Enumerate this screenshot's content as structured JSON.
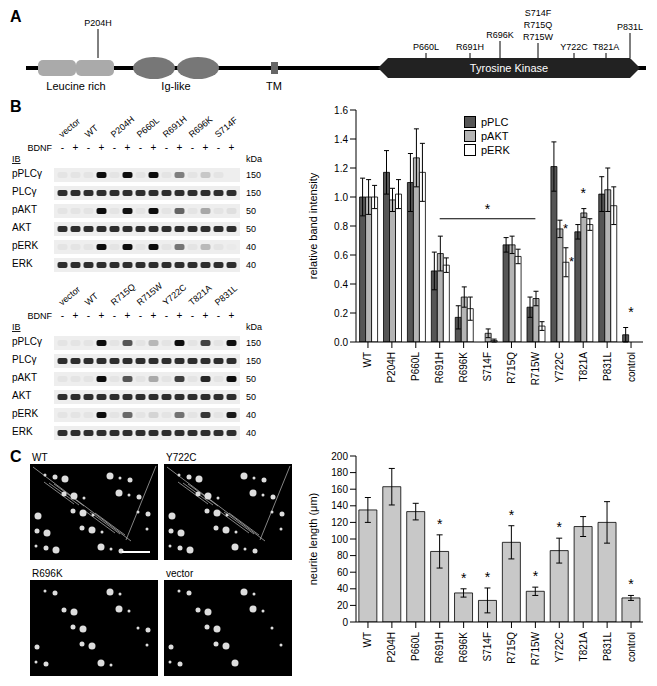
{
  "panel_labels": [
    "A",
    "B",
    "C"
  ],
  "domain_diagram": {
    "domains": [
      "Leucine rich",
      "Ig-like",
      "TM",
      "Tyrosine Kinase"
    ],
    "mutations": [
      "P204H",
      "P660L",
      "R691H",
      "R696K",
      "S714F",
      "R715Q",
      "R715W",
      "Y722C",
      "T821A",
      "P831L"
    ]
  },
  "blots": {
    "ib_label": "IB",
    "kda_label": "kDa",
    "treatment_label": "BDNF",
    "treatment": [
      "-",
      "+"
    ],
    "rows": [
      {
        "label": "pPLCγ",
        "kDa": 150,
        "series": "pPLC"
      },
      {
        "label": "PLCγ",
        "kDa": 150
      },
      {
        "label": "pAKT",
        "kDa": 50,
        "series": "pAKT"
      },
      {
        "label": "AKT",
        "kDa": 50
      },
      {
        "label": "pERK",
        "kDa": 40,
        "series": "pERK"
      },
      {
        "label": "ERK",
        "kDa": 40
      }
    ],
    "gels": [
      {
        "lanes": [
          "vector",
          "WT",
          "P204H",
          "P660L",
          "R691H",
          "R696K",
          "S714F"
        ]
      },
      {
        "lanes": [
          "vector",
          "WT",
          "R715Q",
          "R715W",
          "Y722C",
          "T821A",
          "P831L"
        ]
      }
    ]
  },
  "micrographs": {
    "panels": [
      "WT",
      "Y722C",
      "R696K",
      "vector"
    ]
  },
  "chart_data": [
    {
      "type": "bar",
      "y_label": "relative band intensity",
      "categories": [
        "WT",
        "P204H",
        "P660L",
        "R691H",
        "R696K",
        "S714F",
        "R715Q",
        "R715W",
        "Y722C",
        "T821A",
        "P831L",
        "control"
      ],
      "series": [
        {
          "name": "pPLC",
          "color": "#555555",
          "values": [
            1.0,
            1.17,
            1.1,
            0.49,
            0.17,
            0.0,
            0.67,
            0.24,
            1.21,
            0.76,
            1.02,
            0.05
          ],
          "errors": [
            0.13,
            0.15,
            0.2,
            0.13,
            0.08,
            0.0,
            0.05,
            0.07,
            0.17,
            0.05,
            0.12,
            0.05
          ]
        },
        {
          "name": "pAKT",
          "color": "#b4b4b4",
          "values": [
            1.0,
            0.98,
            1.27,
            0.61,
            0.31,
            0.06,
            0.67,
            0.3,
            0.78,
            0.89,
            1.05,
            0.0
          ],
          "errors": [
            0.12,
            0.08,
            0.2,
            0.12,
            0.07,
            0.03,
            0.06,
            0.05,
            0.06,
            0.03,
            0.15,
            0.0
          ]
        },
        {
          "name": "pERK",
          "color": "#ffffff",
          "values": [
            1.0,
            1.02,
            1.17,
            0.53,
            0.23,
            0.01,
            0.59,
            0.11,
            0.55,
            0.81,
            0.94,
            0.0
          ],
          "errors": [
            0.08,
            0.1,
            0.2,
            0.05,
            0.08,
            0.01,
            0.05,
            0.03,
            0.1,
            0.04,
            0.13,
            0.0
          ]
        }
      ],
      "ylim": [
        0,
        1.6
      ],
      "yticks": [
        {
          "value": 0,
          "label": "0.0"
        },
        0.2,
        0.4,
        0.6,
        0.8,
        {
          "value": 1,
          "label": "1.0"
        },
        1.2,
        1.4,
        1.6
      ],
      "legend": "top",
      "annotations": [
        {
          "text": "*",
          "from": "R691H",
          "to": "R715W"
        },
        {
          "text": "*",
          "categories": [
            "Y722C"
          ],
          "series": [
            "pAKT",
            "pERK"
          ]
        },
        {
          "text": "*",
          "categories": [
            "T821A"
          ]
        },
        {
          "text": "*",
          "categories": [
            "control"
          ]
        }
      ]
    },
    {
      "type": "bar",
      "y_label": "neurite length (μm)",
      "categories": [
        "WT",
        "P204H",
        "P660L",
        "R691H",
        "R696K",
        "S714F",
        "R715Q",
        "R715W",
        "Y722C",
        "T821A",
        "P831L",
        "control"
      ],
      "values": [
        135,
        163,
        133,
        85,
        35,
        26,
        96,
        37,
        86,
        115,
        120,
        29
      ],
      "errors": [
        15,
        22,
        10,
        20,
        5,
        15,
        20,
        5,
        15,
        12,
        25,
        3
      ],
      "color": "#c8c8c8",
      "ylim": [
        0,
        200
      ],
      "yticks": [
        0,
        20,
        40,
        60,
        80,
        100,
        120,
        140,
        160,
        180,
        200
      ],
      "annotations": [
        {
          "text": "*",
          "categories": [
            "R691H",
            "R696K",
            "S714F",
            "R715Q",
            "R715W",
            "Y722C",
            "control"
          ]
        }
      ]
    }
  ]
}
